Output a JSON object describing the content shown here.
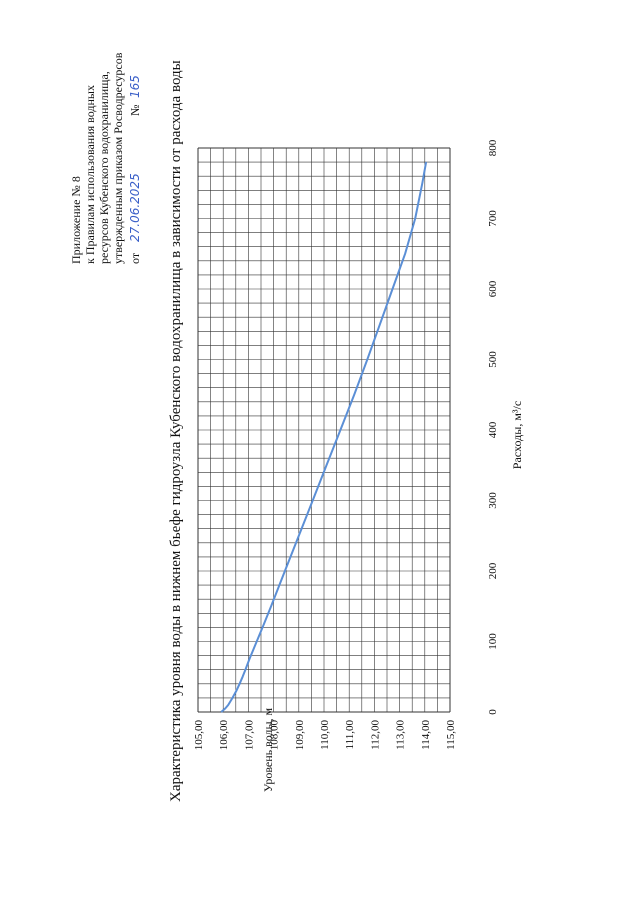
{
  "header": {
    "line1": "Приложение № 8",
    "line2": "к   Правилам   использования   водных",
    "line3": "ресурсов   Кубенского   водохранилища,",
    "line4": "утвержденным приказом Росводресурсов",
    "line5_prefix": "от",
    "order_date": "27.06.2025",
    "order_no_label": "№",
    "order_no": "165"
  },
  "colors": {
    "series": "#5b8fd6",
    "grid": "#333333",
    "handwriting": "#3a5fc8"
  },
  "chart_data": {
    "type": "line",
    "title": "Характеристика уровня воды в нижнем бьефе гидроузла Кубенского водохранилища в зависимости от расхода воды",
    "xlabel": "Расходы, м³/с",
    "ylabel": "Уровень воды, м",
    "xlim": [
      0,
      800
    ],
    "ylim": [
      105,
      115
    ],
    "x_ticks": [
      "0",
      "100",
      "200",
      "300",
      "400",
      "500",
      "600",
      "700",
      "800"
    ],
    "y_ticks": [
      "105,00",
      "106,00",
      "107,00",
      "108,00",
      "109,00",
      "110,00",
      "111,00",
      "112,00",
      "113,00",
      "114,00",
      "115,00"
    ],
    "grid": true,
    "series": [
      {
        "name": "Уровень воды",
        "x": [
          0,
          5,
          10,
          20,
          30,
          40,
          50,
          60,
          75,
          100,
          125,
          150,
          200,
          250,
          300,
          350,
          400,
          450,
          500,
          550,
          600,
          650,
          700,
          750,
          780
        ],
        "y": [
          105.92,
          106.08,
          106.2,
          106.37,
          106.52,
          106.65,
          106.77,
          106.88,
          107.04,
          107.33,
          107.62,
          107.9,
          108.45,
          109.0,
          109.55,
          110.1,
          110.65,
          111.2,
          111.72,
          112.22,
          112.72,
          113.22,
          113.62,
          113.9,
          114.05
        ]
      }
    ]
  }
}
